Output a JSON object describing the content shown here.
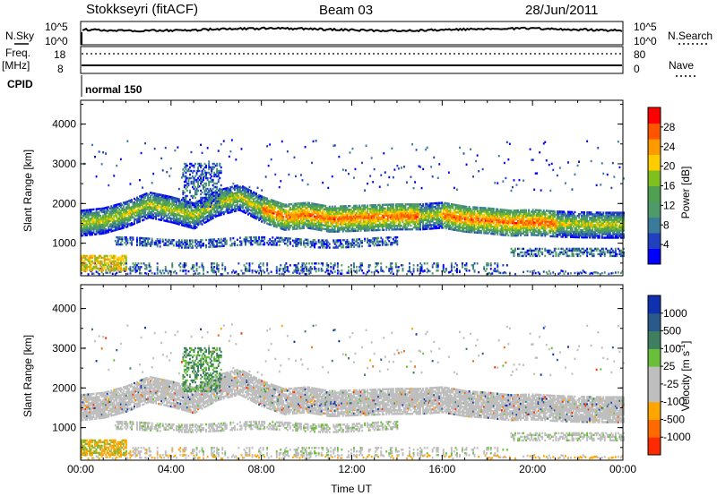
{
  "header": {
    "station": "Stokkseyri (fitACF)",
    "beam": "Beam 03",
    "date": "28/Jun/2011"
  },
  "summary_panels": {
    "nsky_label": "N.Sky",
    "nsky_ticks": [
      "10^5",
      "10^0"
    ],
    "nsearch_label": "N.Search",
    "nsearch_ticks": [
      "10^5",
      "10^0"
    ],
    "freq_label": "Freq.",
    "freq_unit": "[MHz]",
    "freq_ticks": [
      "18",
      "8"
    ],
    "nave_label": "Nave",
    "nave_ticks": [
      "80",
      "0"
    ],
    "cpid_label": "CPID",
    "cpid_value": "normal 150"
  },
  "colors": {
    "power_scale": [
      "#0000ff",
      "#2040c0",
      "#3a7a9a",
      "#4f9a6a",
      "#4fa050",
      "#7fc020",
      "#ffcc00",
      "#ff9900",
      "#ff5500",
      "#ff0000"
    ],
    "velocity_scale": [
      "#1030b0",
      "#2a5a8a",
      "#3f7f5f",
      "#6abf3a",
      "#bebebe",
      "#bebebe",
      "#ffa500",
      "#ff6a00",
      "#ff2a00"
    ]
  },
  "chart_data": [
    {
      "type": "heatmap",
      "name": "power",
      "ylabel": "Slant Range [km]",
      "ylim": [
        180,
        4600
      ],
      "yticks": [
        "4000",
        "3000",
        "2000",
        "1000"
      ],
      "yvalues": [
        4000,
        3000,
        2000,
        1000
      ],
      "xticks": [
        "00:00",
        "04:00",
        "08:00",
        "12:00",
        "16:00",
        "20:00",
        "00:00"
      ],
      "xlim_hours": [
        0,
        24
      ],
      "colorbar_label": "Power [dB]",
      "colorbar_ticks": [
        "28",
        "24",
        "20",
        "16",
        "12",
        "8",
        "4"
      ],
      "colorbar_range": [
        0,
        32
      ],
      "echo_band_center_km": [
        [
          0.0,
          1500
        ],
        [
          1.0,
          1560
        ],
        [
          2.0,
          1720
        ],
        [
          3.0,
          1960
        ],
        [
          4.0,
          1840
        ],
        [
          5.0,
          1680
        ],
        [
          6.0,
          2000
        ],
        [
          7.0,
          2150
        ],
        [
          8.0,
          1850
        ],
        [
          9.0,
          1650
        ],
        [
          10.0,
          1700
        ],
        [
          11.0,
          1600
        ],
        [
          12.0,
          1620
        ],
        [
          13.0,
          1640
        ],
        [
          14.0,
          1660
        ],
        [
          15.0,
          1660
        ],
        [
          16.0,
          1700
        ],
        [
          17.0,
          1600
        ],
        [
          18.0,
          1560
        ],
        [
          19.0,
          1500
        ],
        [
          20.0,
          1520
        ],
        [
          21.0,
          1480
        ],
        [
          22.0,
          1460
        ],
        [
          23.0,
          1450
        ],
        [
          24.0,
          1450
        ]
      ]
    },
    {
      "type": "heatmap",
      "name": "velocity",
      "ylabel": "Slant Range [km]",
      "ylim": [
        180,
        4600
      ],
      "yticks": [
        "4000",
        "3000",
        "2000",
        "1000"
      ],
      "yvalues": [
        4000,
        3000,
        2000,
        1000
      ],
      "xticks": [
        "00:00",
        "04:00",
        "08:00",
        "12:00",
        "16:00",
        "20:00",
        "00:00"
      ],
      "xlabel": "Time UT",
      "colorbar_label": "Velocity [m s",
      "colorbar_label_sup": "-1",
      "colorbar_label_end": "]",
      "colorbar_ticks": [
        "1000",
        "500",
        "100",
        "25",
        "-25",
        "-100",
        "-500",
        "-1000"
      ]
    }
  ]
}
